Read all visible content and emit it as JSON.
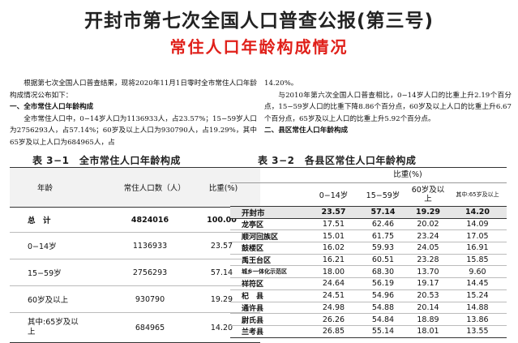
{
  "header": {
    "title": "开封市第七次全国人口普查公报(第三号)",
    "subtitle": "常住人口年龄构成情况"
  },
  "text": {
    "left_para1": "根据第七次全国人口普查结果，现将2020年11月1日零时全市常住人口年龄构成情况公布如下：",
    "left_heading": "一、全市常住人口年龄构成",
    "left_para2": "全市常住人口中，0−14岁人口为1136933人，占23.57%；15−59岁人口为2756293人，占57.14%；60岁及以上人口为930790人，占19.29%，其中65岁及以上人口为684965人，占",
    "right_para0": "14.20%。",
    "right_para1": "与2010年第六次全国人口普查相比，0−14岁人口的比重上升2.19个百分点，15−59岁人口的比重下降8.86个百分点，60岁及以上人口的比重上升6.67个百分点，65岁及以上人口的比重上升5.92个百分点。",
    "right_heading": "二、县区常住人口年龄构成"
  },
  "table1": {
    "caption": "表 3−1　全市常住人口年龄构成",
    "headers": [
      "年龄",
      "常住人口数（人）",
      "比重(%)"
    ],
    "rows": [
      {
        "label": "总　计",
        "count": "4824016",
        "share": "100.00"
      },
      {
        "label": "0−14岁",
        "count": "1136933",
        "share": "23.57"
      },
      {
        "label": "15−59岁",
        "count": "2756293",
        "share": "57.14"
      },
      {
        "label": "60岁及以上",
        "count": "930790",
        "share": "19.29"
      },
      {
        "label": "其中:65岁及以上",
        "count": "684965",
        "share": "14.20"
      }
    ]
  },
  "table2": {
    "caption": "表 3−2　各县区常住人口年龄构成",
    "group_header": "比重(%)",
    "headers": [
      "0−14岁",
      "15−59岁",
      "60岁及以上",
      "其中:65岁及以上"
    ],
    "rows": [
      {
        "name": "开封市",
        "v": [
          "23.57",
          "57.14",
          "19.29",
          "14.20"
        ]
      },
      {
        "name": "龙亭区",
        "v": [
          "17.51",
          "62.46",
          "20.02",
          "14.09"
        ]
      },
      {
        "name": "顺河回族区",
        "v": [
          "15.01",
          "61.75",
          "23.24",
          "17.05"
        ]
      },
      {
        "name": "鼓楼区",
        "v": [
          "16.02",
          "59.93",
          "24.05",
          "16.91"
        ]
      },
      {
        "name": "禹王台区",
        "v": [
          "16.21",
          "60.51",
          "23.28",
          "15.85"
        ]
      },
      {
        "name": "城乡一体化示范区",
        "v": [
          "18.00",
          "68.30",
          "13.70",
          "9.60"
        ]
      },
      {
        "name": "祥符区",
        "v": [
          "24.64",
          "56.19",
          "19.17",
          "14.45"
        ]
      },
      {
        "name": "杞　县",
        "v": [
          "24.51",
          "54.96",
          "20.53",
          "15.24"
        ]
      },
      {
        "name": "通许县",
        "v": [
          "24.98",
          "54.88",
          "20.14",
          "14.88"
        ]
      },
      {
        "name": "尉氏县",
        "v": [
          "26.26",
          "54.84",
          "18.89",
          "13.86"
        ]
      },
      {
        "name": "兰考县",
        "v": [
          "26.85",
          "55.14",
          "18.01",
          "13.55"
        ]
      }
    ]
  }
}
